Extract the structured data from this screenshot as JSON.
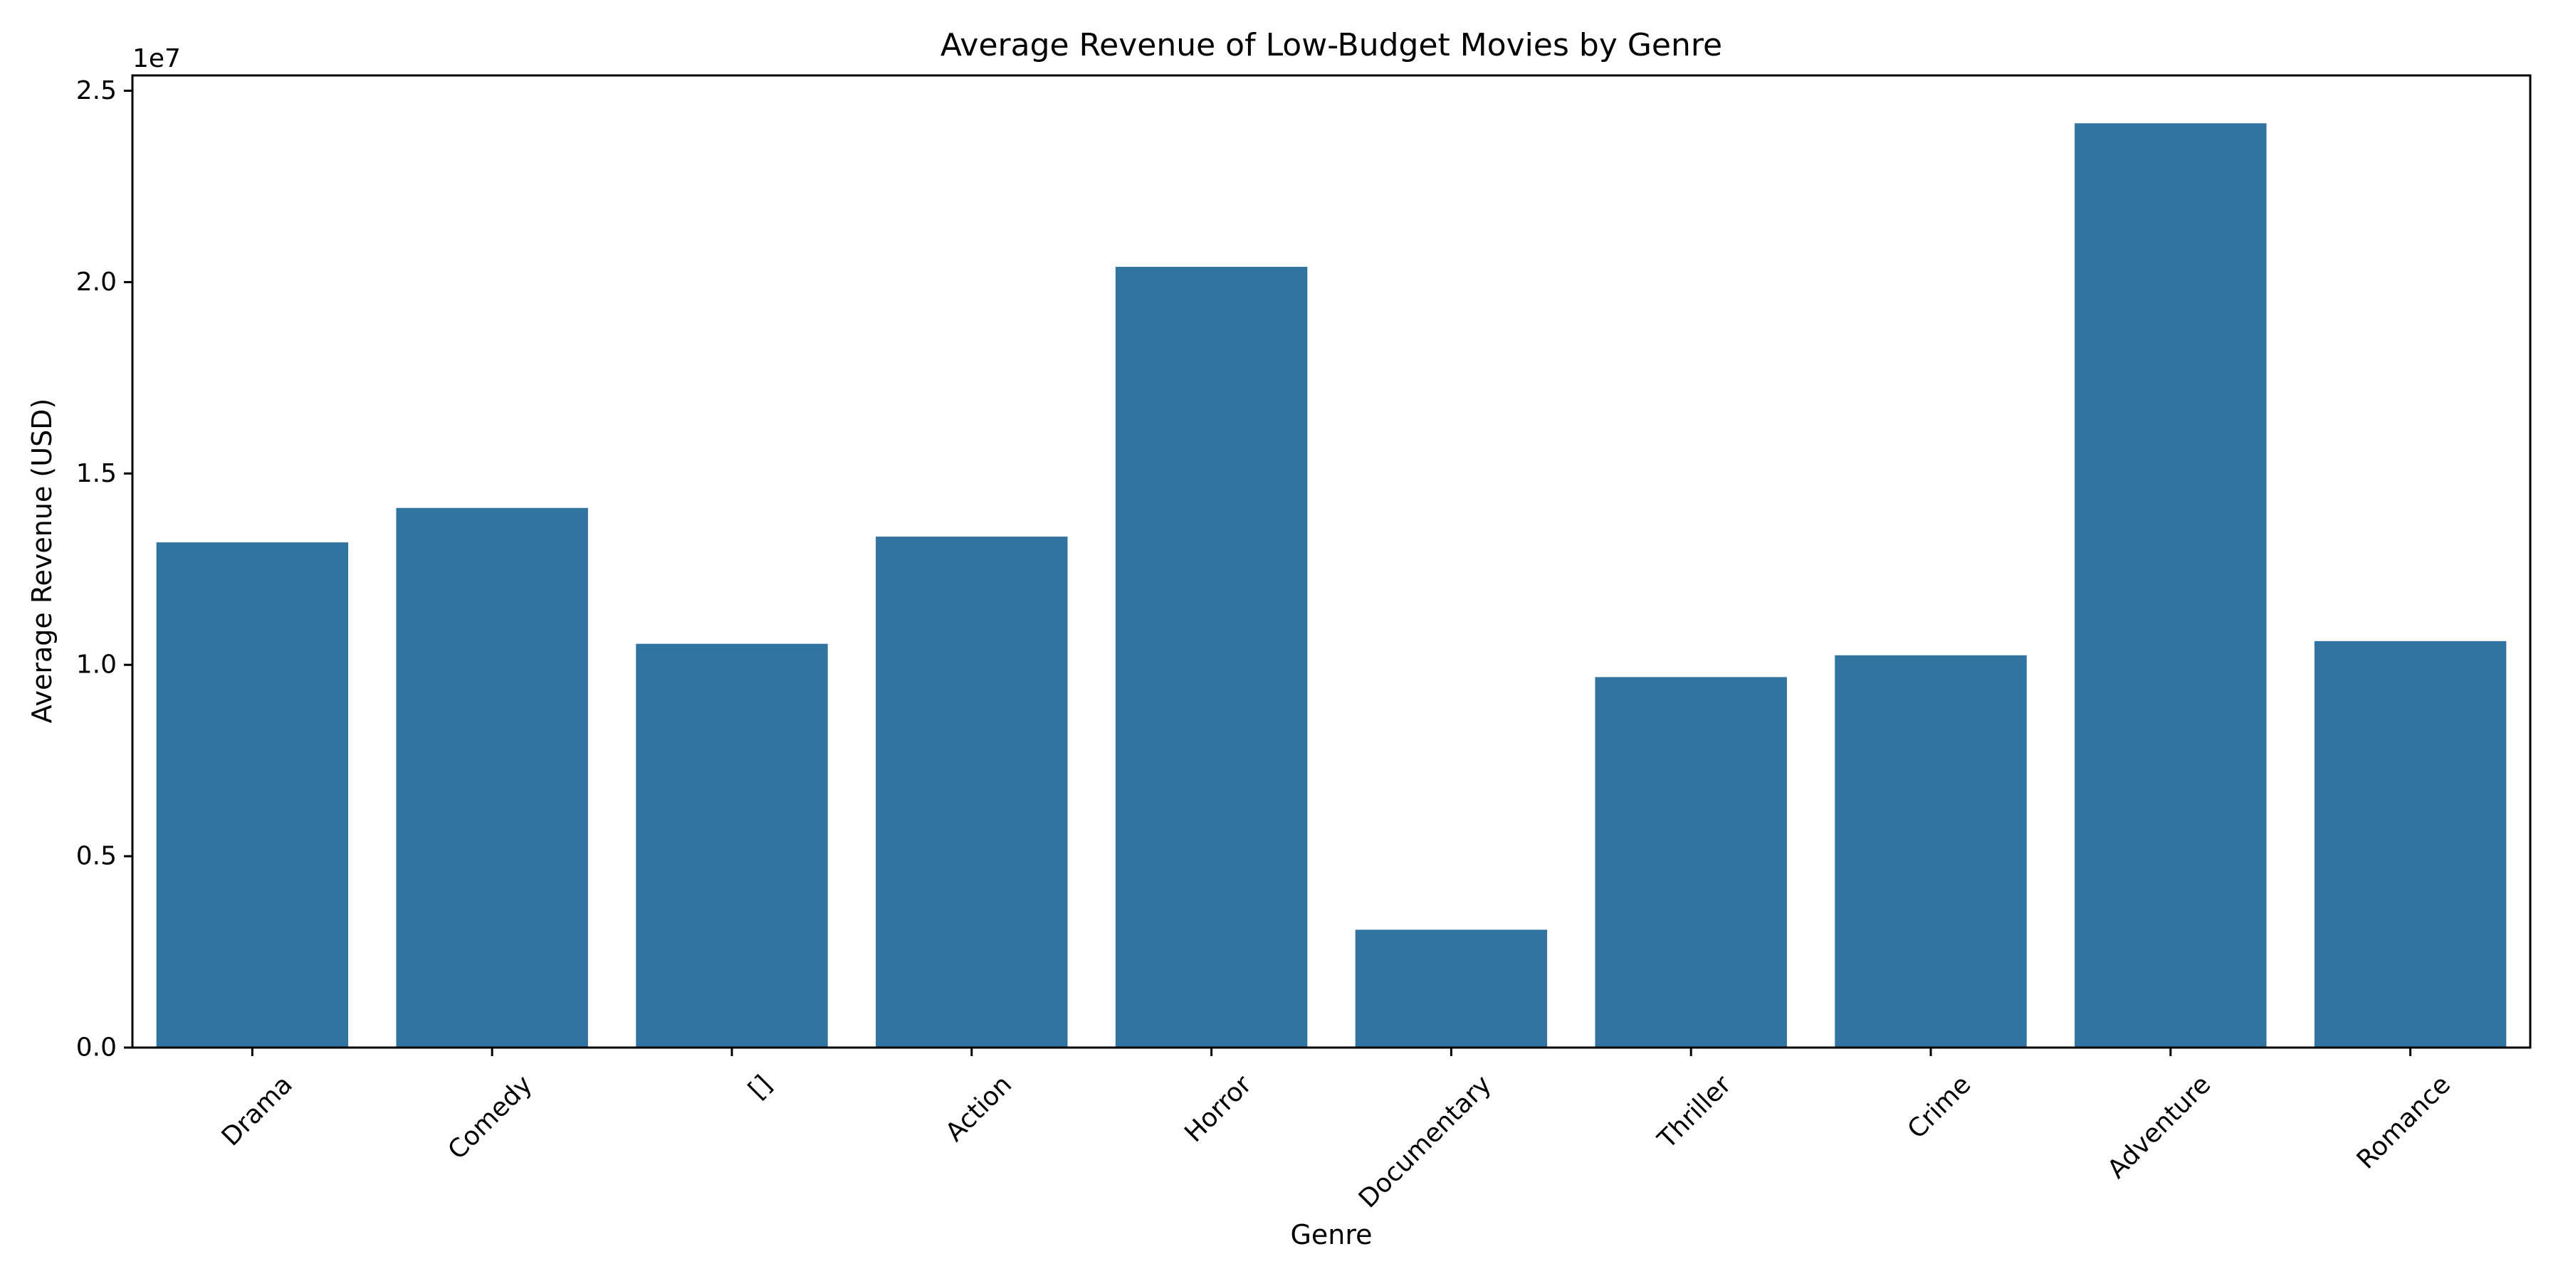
{
  "chart_data": {
    "type": "bar",
    "title": "Average Revenue of Low-Budget Movies by Genre",
    "xlabel": "Genre",
    "ylabel": "Average Revenue (USD)",
    "y_offset_label": "1e7",
    "categories": [
      "Drama",
      "Comedy",
      "[]",
      "Action",
      "Horror",
      "Documentary",
      "Thriller",
      "Crime",
      "Adventure",
      "Romance"
    ],
    "values": [
      13200000,
      14100000,
      10550000,
      13350000,
      20400000,
      3080000,
      9680000,
      10250000,
      24150000,
      10620000
    ],
    "ylim": [
      0,
      25400000
    ],
    "y_ticks": [
      0,
      5000000,
      10000000,
      15000000,
      20000000,
      25000000
    ],
    "y_tick_labels": [
      "0.0",
      "0.5",
      "1.0",
      "1.5",
      "2.0",
      "2.5"
    ],
    "grid": false,
    "bar_color": "#3274a1"
  }
}
